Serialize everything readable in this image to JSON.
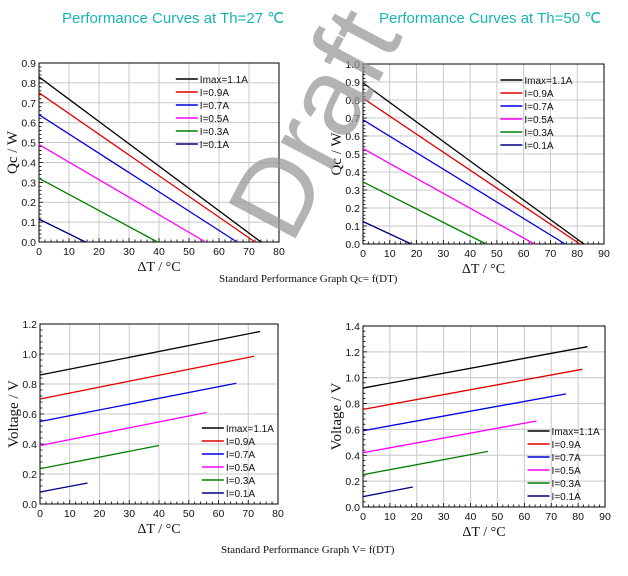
{
  "titles": [
    "Performance Curves at Th=27 ℃",
    "Performance Curves at Th=50 ℃"
  ],
  "captions": [
    "Standard Performance Graph Qc= f(DT)",
    "Standard Performance Graph V= f(DT)"
  ],
  "watermark": "Draft",
  "colors": {
    "Imax=1.1A": "#000000",
    "I=0.9A": "#e00000",
    "I=0.7A": "#0000e0",
    "I=0.5A": "#ff00ff",
    "I=0.3A": "#008000",
    "I=0.1A": "#000080",
    "grid": "#c8c8c8",
    "title": "#19b5b5"
  },
  "chart_data": [
    {
      "type": "line",
      "title": "Performance Curves at Th=27 ℃",
      "xlabel": "ΔT / °C",
      "ylabel": "Qc / W",
      "xlim": [
        0,
        80
      ],
      "ylim": [
        0,
        0.9
      ],
      "xticks": [
        0,
        10,
        20,
        30,
        40,
        50,
        60,
        70,
        80
      ],
      "yticks": [
        0,
        0.1,
        0.2,
        0.3,
        0.4,
        0.5,
        0.6,
        0.7,
        0.8,
        0.9
      ],
      "ydecimals": 1,
      "grid": true,
      "legend": "top-right",
      "series": [
        {
          "name": "Imax=1.1A",
          "x": [
            0,
            74
          ],
          "y": [
            0.83,
            0
          ]
        },
        {
          "name": "I=0.9A",
          "x": [
            0,
            72
          ],
          "y": [
            0.75,
            0
          ]
        },
        {
          "name": "I=0.7A",
          "x": [
            0,
            66
          ],
          "y": [
            0.64,
            0
          ]
        },
        {
          "name": "I=0.5A",
          "x": [
            0,
            55.5
          ],
          "y": [
            0.49,
            0
          ]
        },
        {
          "name": "I=0.3A",
          "x": [
            0,
            39.5
          ],
          "y": [
            0.32,
            0
          ]
        },
        {
          "name": "I=0.1A",
          "x": [
            0,
            15.5
          ],
          "y": [
            0.115,
            0
          ]
        }
      ]
    },
    {
      "type": "line",
      "title": "Performance Curves at Th=50 ℃",
      "xlabel": "ΔT / °C",
      "ylabel": "Qc / W",
      "xlim": [
        0,
        90
      ],
      "ylim": [
        0,
        1.0
      ],
      "xticks": [
        0,
        10,
        20,
        30,
        40,
        50,
        60,
        70,
        80,
        90
      ],
      "yticks": [
        0,
        0.1,
        0.2,
        0.3,
        0.4,
        0.5,
        0.6,
        0.7,
        0.8,
        0.9,
        1.0
      ],
      "ydecimals": 1,
      "grid": true,
      "legend": "top-right",
      "series": [
        {
          "name": "Imax=1.1A",
          "x": [
            0,
            82.5
          ],
          "y": [
            0.895,
            0
          ]
        },
        {
          "name": "I=0.9A",
          "x": [
            0,
            81
          ],
          "y": [
            0.81,
            0
          ]
        },
        {
          "name": "I=0.7A",
          "x": [
            0,
            75.5
          ],
          "y": [
            0.69,
            0
          ]
        },
        {
          "name": "I=0.5A",
          "x": [
            0,
            64
          ],
          "y": [
            0.53,
            0
          ]
        },
        {
          "name": "I=0.3A",
          "x": [
            0,
            46
          ],
          "y": [
            0.345,
            0
          ]
        },
        {
          "name": "I=0.1A",
          "x": [
            0,
            18
          ],
          "y": [
            0.125,
            0
          ]
        }
      ]
    },
    {
      "type": "line",
      "title": "",
      "xlabel": "ΔT / °C",
      "ylabel": "Voltage / V",
      "xlim": [
        0,
        80
      ],
      "ylim": [
        0,
        1.2
      ],
      "xticks": [
        0,
        10,
        20,
        30,
        40,
        50,
        60,
        70,
        80
      ],
      "yticks": [
        0,
        0.2,
        0.4,
        0.6,
        0.8,
        1.0,
        1.2
      ],
      "ydecimals": 1,
      "grid": true,
      "legend": "bottom-right",
      "series": [
        {
          "name": "Imax=1.1A",
          "x": [
            0,
            74
          ],
          "y": [
            0.86,
            1.15
          ]
        },
        {
          "name": "I=0.9A",
          "x": [
            0,
            72
          ],
          "y": [
            0.7,
            0.985
          ]
        },
        {
          "name": "I=0.7A",
          "x": [
            0,
            66
          ],
          "y": [
            0.55,
            0.805
          ]
        },
        {
          "name": "I=0.5A",
          "x": [
            0,
            56
          ],
          "y": [
            0.39,
            0.61
          ]
        },
        {
          "name": "I=0.3A",
          "x": [
            0,
            40
          ],
          "y": [
            0.235,
            0.39
          ]
        },
        {
          "name": "I=0.1A",
          "x": [
            0,
            16
          ],
          "y": [
            0.08,
            0.14
          ]
        }
      ]
    },
    {
      "type": "line",
      "title": "",
      "xlabel": "ΔT / °C",
      "ylabel": "Voltage / V",
      "xlim": [
        0,
        90
      ],
      "ylim": [
        0,
        1.4
      ],
      "xticks": [
        0,
        10,
        20,
        30,
        40,
        50,
        60,
        70,
        80,
        90
      ],
      "yticks": [
        0,
        0.2,
        0.4,
        0.6,
        0.8,
        1.0,
        1.2,
        1.4
      ],
      "ydecimals": 1,
      "grid": true,
      "legend": "bottom-right",
      "series": [
        {
          "name": "Imax=1.1A",
          "x": [
            0,
            83.5
          ],
          "y": [
            0.92,
            1.24
          ]
        },
        {
          "name": "I=0.9A",
          "x": [
            0,
            81.5
          ],
          "y": [
            0.755,
            1.065
          ]
        },
        {
          "name": "I=0.7A",
          "x": [
            0,
            75.5
          ],
          "y": [
            0.59,
            0.875
          ]
        },
        {
          "name": "I=0.5A",
          "x": [
            0,
            64.5
          ],
          "y": [
            0.42,
            0.665
          ]
        },
        {
          "name": "I=0.3A",
          "x": [
            0,
            46.5
          ],
          "y": [
            0.25,
            0.43
          ]
        },
        {
          "name": "I=0.1A",
          "x": [
            0,
            18.5
          ],
          "y": [
            0.08,
            0.155
          ]
        }
      ]
    }
  ]
}
